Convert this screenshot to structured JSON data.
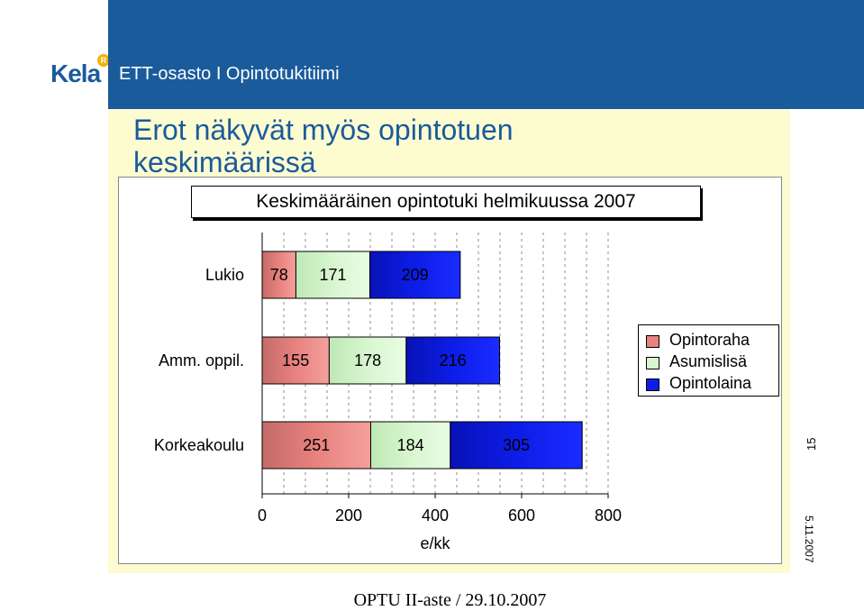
{
  "header": {
    "logo_text": "Kela",
    "dept_title": "ETT-osasto I Opintotukitiimi"
  },
  "slide": {
    "title": "Erot näkyvät myös opintotuen keskimäärissä",
    "slide_number": "15",
    "date": "5.11.2007",
    "footer": "OPTU II-aste / 29.10.2007"
  },
  "colors": {
    "header_bar": "#1a5b9c",
    "panel": "#fdfbd0",
    "opintoraha": "#e8827e",
    "asumislisa": "#d8f6d0",
    "opintolaina": "#0d1de8"
  },
  "chart_data": {
    "type": "bar",
    "orientation": "horizontal",
    "stacked": true,
    "title": "Keskimääräinen opintotuki helmikuussa 2007",
    "categories": [
      "Lukio",
      "Amm. oppil.",
      "Korkeakoulu"
    ],
    "series": [
      {
        "name": "Opintoraha",
        "values": [
          78,
          155,
          251
        ],
        "color": "#e8827e"
      },
      {
        "name": "Asumislisä",
        "values": [
          171,
          178,
          184
        ],
        "color": "#d8f6d0"
      },
      {
        "name": "Opintolaina",
        "values": [
          209,
          216,
          305
        ],
        "color": "#0d1de8"
      }
    ],
    "xlabel": "e/kk",
    "ylabel": "",
    "xlim": [
      0,
      800
    ],
    "xticks": [
      0,
      200,
      400,
      600,
      800
    ],
    "grid": true,
    "legend": "right"
  }
}
